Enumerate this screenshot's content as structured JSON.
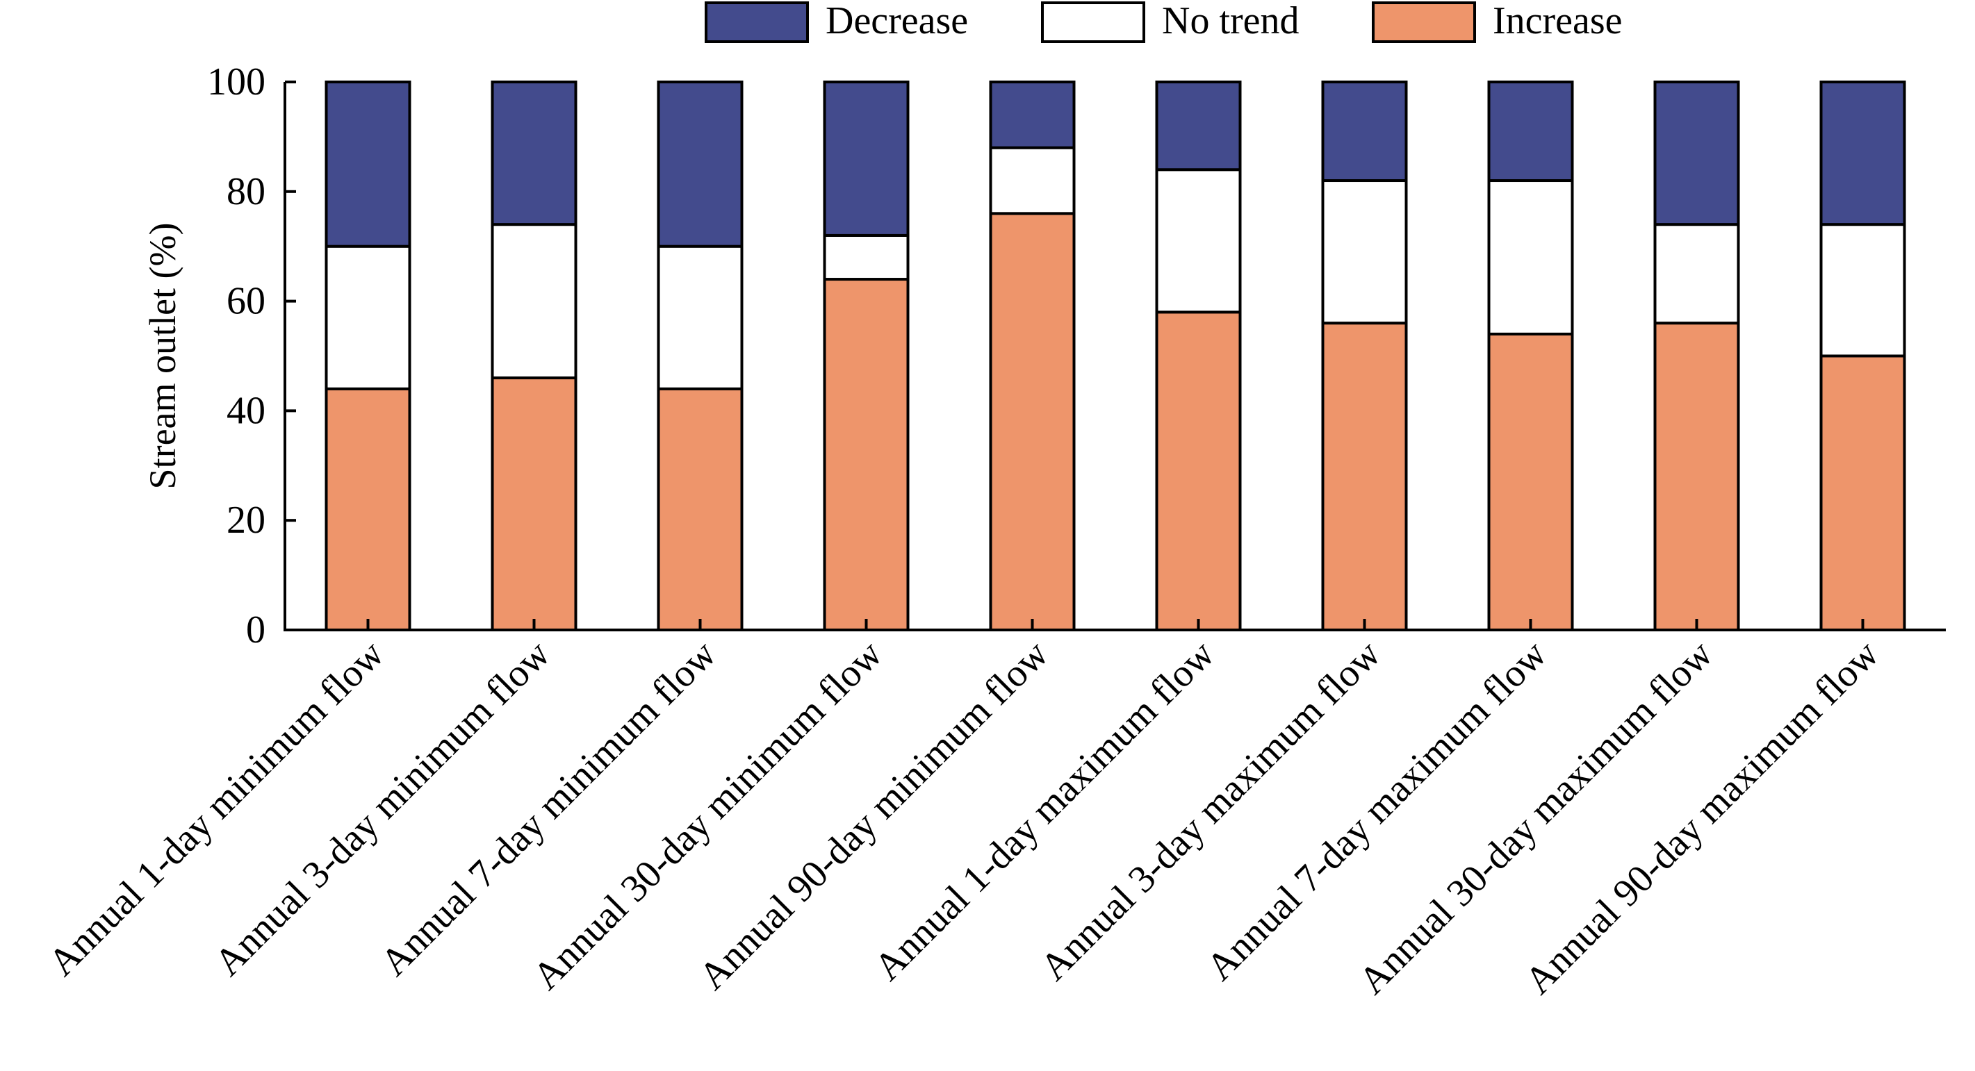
{
  "chart_data": {
    "type": "bar",
    "stacked": true,
    "title": "",
    "xlabel": "",
    "ylabel": "Stream outlet (%)",
    "ylim": [
      0,
      100
    ],
    "yticks": [
      "0",
      "20",
      "40",
      "60",
      "80",
      "100"
    ],
    "categories": [
      "Annual 1-day minimum flow",
      "Annual 3-day minimum flow",
      "Annual 7-day minimum flow",
      "Annual 30-day minimum flow",
      "Annual 90-day minimum flow",
      "Annual 1-day maximum flow",
      "Annual 3-day maximum flow",
      "Annual 7-day maximum flow",
      "Annual 30-day maximum flow",
      "Annual 90-day maximum flow"
    ],
    "series": [
      {
        "name": "Increase",
        "color": "#ee956b",
        "values": [
          44,
          46,
          44,
          64,
          76,
          58,
          56,
          54,
          56,
          50
        ]
      },
      {
        "name": "No trend",
        "color": "#ffffff",
        "values": [
          26,
          28,
          26,
          8,
          12,
          26,
          26,
          28,
          18,
          24
        ]
      },
      {
        "name": "Decrease",
        "color": "#434b8d",
        "values": [
          30,
          26,
          30,
          28,
          12,
          16,
          18,
          18,
          26,
          26
        ]
      }
    ],
    "legend": {
      "position": "top",
      "order": [
        "Decrease",
        "No trend",
        "Increase"
      ]
    },
    "grid": false
  }
}
